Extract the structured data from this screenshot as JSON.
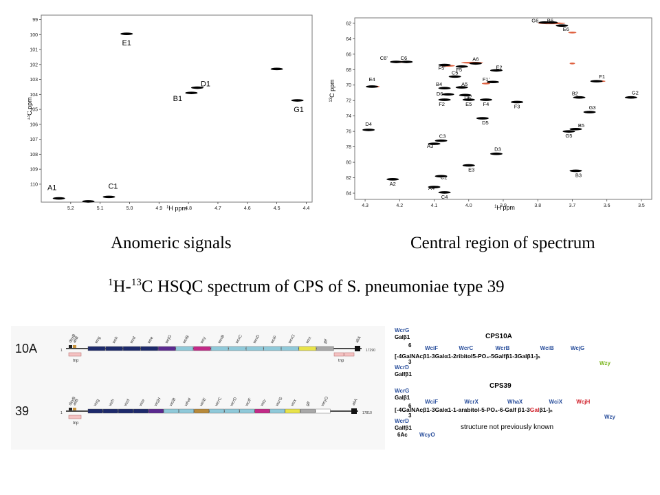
{
  "captions": {
    "left": "Anomeric signals",
    "right": "Central region of spectrum"
  },
  "title": {
    "sup1": "1",
    "part1": "H-",
    "sup2": "13",
    "part2": "C HSQC spectrum of CPS of S. pneumoniae type 39"
  },
  "colors": {
    "signal": "#000000",
    "overlay": "#d9451e"
  },
  "chart_data": [
    {
      "type": "scatter",
      "xlabel": "1H ppm",
      "ylabel": "13C ppm",
      "xlim": [
        5.3,
        4.38
      ],
      "ylim": [
        98.7,
        111.2
      ],
      "xticks": [
        5.2,
        5.1,
        5.0,
        4.9,
        4.8,
        4.7,
        4.6,
        4.5,
        4.4
      ],
      "yticks": [
        99,
        100,
        101,
        102,
        103,
        104,
        105,
        106,
        107,
        108,
        109,
        110
      ],
      "points": [
        {
          "label": "E1",
          "x": 5.01,
          "y": 99.95
        },
        {
          "label": "D1",
          "x": 4.77,
          "y": 103.55
        },
        {
          "label": "B1",
          "x": 4.79,
          "y": 103.9
        },
        {
          "label": "G1",
          "x": 4.43,
          "y": 104.4
        },
        {
          "label": "A1",
          "x": 5.24,
          "y": 110.95
        },
        {
          "label": "C1",
          "x": 5.07,
          "y": 110.85
        },
        {
          "label": "",
          "x": 4.5,
          "y": 102.3
        },
        {
          "label": "",
          "x": 5.14,
          "y": 111.15
        }
      ]
    },
    {
      "type": "scatter",
      "xlabel": "1H ppm",
      "ylabel": "13C ppm",
      "xlim": [
        4.33,
        3.47
      ],
      "ylim": [
        61.3,
        84.8
      ],
      "xticks": [
        4.3,
        4.2,
        4.1,
        4.0,
        3.9,
        3.8,
        3.7,
        3.6,
        3.5
      ],
      "yticks": [
        62,
        64,
        66,
        68,
        70,
        72,
        74,
        76,
        78,
        80,
        82,
        84
      ],
      "points": [
        {
          "label": "G6",
          "x": 3.78,
          "y": 61.9
        },
        {
          "label": "B6",
          "x": 3.76,
          "y": 61.9
        },
        {
          "label": "E6",
          "x": 3.73,
          "y": 62.3
        },
        {
          "label": "C6'",
          "x": 4.21,
          "y": 67.0
        },
        {
          "label": "C6",
          "x": 4.18,
          "y": 67.0
        },
        {
          "label": "A6",
          "x": 3.98,
          "y": 67.2
        },
        {
          "label": "F5",
          "x": 4.02,
          "y": 67.6
        },
        {
          "label": "E2",
          "x": 3.92,
          "y": 68.1
        },
        {
          "label": "F5'",
          "x": 4.07,
          "y": 67.4
        },
        {
          "label": "C5",
          "x": 4.04,
          "y": 68.9
        },
        {
          "label": "F1'",
          "x": 3.93,
          "y": 69.6
        },
        {
          "label": "F1",
          "x": 3.63,
          "y": 69.5
        },
        {
          "label": "E4",
          "x": 4.28,
          "y": 70.2
        },
        {
          "label": "B4",
          "x": 4.07,
          "y": 70.4
        },
        {
          "label": "A5",
          "x": 4.02,
          "y": 70.3
        },
        {
          "label": "D6",
          "x": 4.06,
          "y": 71.2
        },
        {
          "label": "D6'",
          "x": 4.01,
          "y": 71.3
        },
        {
          "label": "F2",
          "x": 4.07,
          "y": 71.9
        },
        {
          "label": "E5",
          "x": 4.0,
          "y": 71.9
        },
        {
          "label": "F4",
          "x": 3.95,
          "y": 71.9
        },
        {
          "label": "F3",
          "x": 3.86,
          "y": 72.2
        },
        {
          "label": "B2",
          "x": 3.68,
          "y": 71.6
        },
        {
          "label": "G2",
          "x": 3.53,
          "y": 71.6
        },
        {
          "label": "G3",
          "x": 3.65,
          "y": 73.5
        },
        {
          "label": "D5",
          "x": 3.96,
          "y": 74.3
        },
        {
          "label": "D4",
          "x": 4.29,
          "y": 75.8
        },
        {
          "label": "B5",
          "x": 3.69,
          "y": 75.7
        },
        {
          "label": "G5",
          "x": 3.71,
          "y": 76.0
        },
        {
          "label": "C3",
          "x": 4.08,
          "y": 77.2
        },
        {
          "label": "A3",
          "x": 4.1,
          "y": 77.6
        },
        {
          "label": "D3",
          "x": 3.92,
          "y": 78.9
        },
        {
          "label": "E3",
          "x": 4.0,
          "y": 80.4
        },
        {
          "label": "B3",
          "x": 3.69,
          "y": 81.1
        },
        {
          "label": "C2",
          "x": 4.08,
          "y": 81.8
        },
        {
          "label": "A2",
          "x": 4.22,
          "y": 82.2
        },
        {
          "label": "A4",
          "x": 4.1,
          "y": 83.2
        },
        {
          "label": "C4",
          "x": 4.07,
          "y": 83.9
        }
      ]
    }
  ],
  "clusters": {
    "top": {
      "label": "10A",
      "left_genes": [
        "dexB",
        "aliB"
      ],
      "tnp_label": "tnp",
      "genes": [
        {
          "name": "wzg",
          "color": "#1d2a6b"
        },
        {
          "name": "wzh",
          "color": "#1d2a6b"
        },
        {
          "name": "wzd",
          "color": "#1d2a6b"
        },
        {
          "name": "wze",
          "color": "#1d2a6b"
        },
        {
          "name": "wcjG",
          "color": "#5a2a8f"
        },
        {
          "name": "wciB",
          "color": "#8fc9d9"
        },
        {
          "name": "wzy",
          "color": "#c22a87"
        },
        {
          "name": "wcrB",
          "color": "#8fc9d9"
        },
        {
          "name": "wcrC",
          "color": "#8fc9d9"
        },
        {
          "name": "wcrD",
          "color": "#8fc9d9"
        },
        {
          "name": "wciF",
          "color": "#8fc9d9"
        },
        {
          "name": "wcrG",
          "color": "#8fc9d9"
        },
        {
          "name": "wzx",
          "color": "#e8e34a"
        },
        {
          "name": "glf",
          "color": "#a8a8a8"
        }
      ],
      "right_gene": "aliA",
      "size": "17290",
      "start": "1"
    },
    "bottom": {
      "label": "39",
      "left_genes": [
        "dexB",
        "aliB"
      ],
      "tnp_label": "tnp",
      "genes": [
        {
          "name": "wzg",
          "color": "#1d2a6b"
        },
        {
          "name": "wzh",
          "color": "#1d2a6b"
        },
        {
          "name": "wzd",
          "color": "#1d2a6b"
        },
        {
          "name": "wze",
          "color": "#1d2a6b"
        },
        {
          "name": "wcjH",
          "color": "#5a2a8f"
        },
        {
          "name": "wciB",
          "color": "#8fc9d9"
        },
        {
          "name": "whaI",
          "color": "#8fc9d9"
        },
        {
          "name": "wciE",
          "color": "#b88a3a"
        },
        {
          "name": "wcrC",
          "color": "#8fc9d9"
        },
        {
          "name": "wcrD",
          "color": "#8fc9d9"
        },
        {
          "name": "wciF",
          "color": "#8fc9d9"
        },
        {
          "name": "wzy",
          "color": "#c22a87"
        },
        {
          "name": "wcrG",
          "color": "#8fc9d9"
        },
        {
          "name": "wzx",
          "color": "#e8e34a"
        },
        {
          "name": "glf",
          "color": "#a8a8a8"
        },
        {
          "name": "wcyO",
          "color": "#ffffff"
        }
      ],
      "right_gene": "aliA",
      "size": "17810",
      "start": "1"
    }
  },
  "structures": {
    "cps10a": {
      "title": "CPS10A",
      "top_enzyme": "WcrG",
      "top_sugar": "Galβ1",
      "link6": "6",
      "enzymes": [
        "WciF",
        "WcrC",
        "WcrB",
        "WciB",
        "WcjG"
      ],
      "repeat": "[-4GalNAcβ1-3Galα1-2ribitol5-PO₄-5Galfβ1-3Galβ1-]ₙ",
      "link3": "3",
      "bottom_enzyme": "WcrD",
      "bottom_sugar": "Galfβ1",
      "polymerase": "Wzy"
    },
    "cps39": {
      "title": "CPS39",
      "top_enzyme": "WcrG",
      "top_sugar": "Galβ1",
      "link6": "6",
      "enzymes": [
        "WciF",
        "WcrX",
        "WhaX",
        "WciX",
        "WcjH"
      ],
      "repeat_a": "[-4GalNAcβ1-3Galα1-1-arabitol-5-PO₄-6-Galf β1-3",
      "repeat_red": "Gal",
      "repeat_b": "β1-]ₙ",
      "link3": "3",
      "bottom_enzyme": "WcrD",
      "bottom_sugar": "Galfβ1",
      "bottom_mod": "6Ac",
      "acetyl_enzyme": "WcyO",
      "polymerase": "Wzy",
      "note": "structure not previously known"
    }
  }
}
